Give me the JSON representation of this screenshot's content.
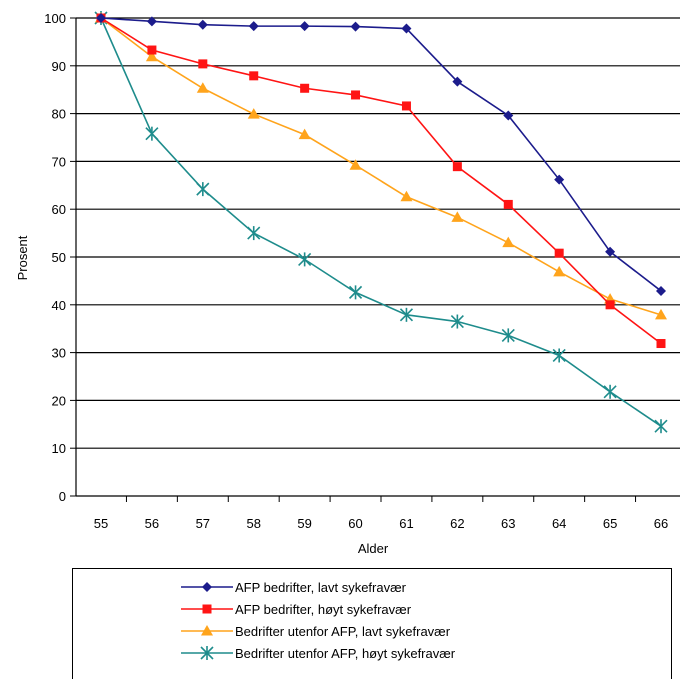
{
  "chart_data": {
    "type": "line",
    "title": "",
    "xlabel": "Alder",
    "ylabel": "Prosent",
    "x": [
      55,
      56,
      57,
      58,
      59,
      60,
      61,
      62,
      63,
      64,
      65,
      66
    ],
    "ylim": [
      0,
      100
    ],
    "yticks": [
      0,
      10,
      20,
      30,
      40,
      50,
      60,
      70,
      80,
      90,
      100
    ],
    "grid": "horizontal",
    "legend_position": "bottom",
    "series": [
      {
        "name": "AFP bedrifter, lavt sykefravær",
        "color": "#1c1c8c",
        "marker": "diamond",
        "values": [
          100,
          99.3,
          98.6,
          98.3,
          98.3,
          98.2,
          97.8,
          86.7,
          79.6,
          66.2,
          51.1,
          42.9
        ]
      },
      {
        "name": "AFP bedrifter, høyt sykefravær",
        "color": "#ff1414",
        "marker": "square",
        "values": [
          100,
          93.3,
          90.4,
          87.9,
          85.3,
          83.9,
          81.6,
          68.9,
          61.0,
          50.8,
          40.0,
          31.9
        ]
      },
      {
        "name": "Bedrifter utenfor AFP, lavt sykefravær",
        "color": "#ffa41c",
        "marker": "triangle",
        "values": [
          100,
          91.9,
          85.3,
          79.9,
          75.6,
          69.2,
          62.6,
          58.3,
          53.0,
          46.9,
          41.2,
          37.9
        ]
      },
      {
        "name": "Bedrifter utenfor AFP, høyt sykefravær",
        "color": "#1e8c8c",
        "marker": "star",
        "values": [
          100,
          75.8,
          64.2,
          55.0,
          49.5,
          42.6,
          37.9,
          36.5,
          33.6,
          29.4,
          21.8,
          14.6
        ]
      }
    ]
  }
}
